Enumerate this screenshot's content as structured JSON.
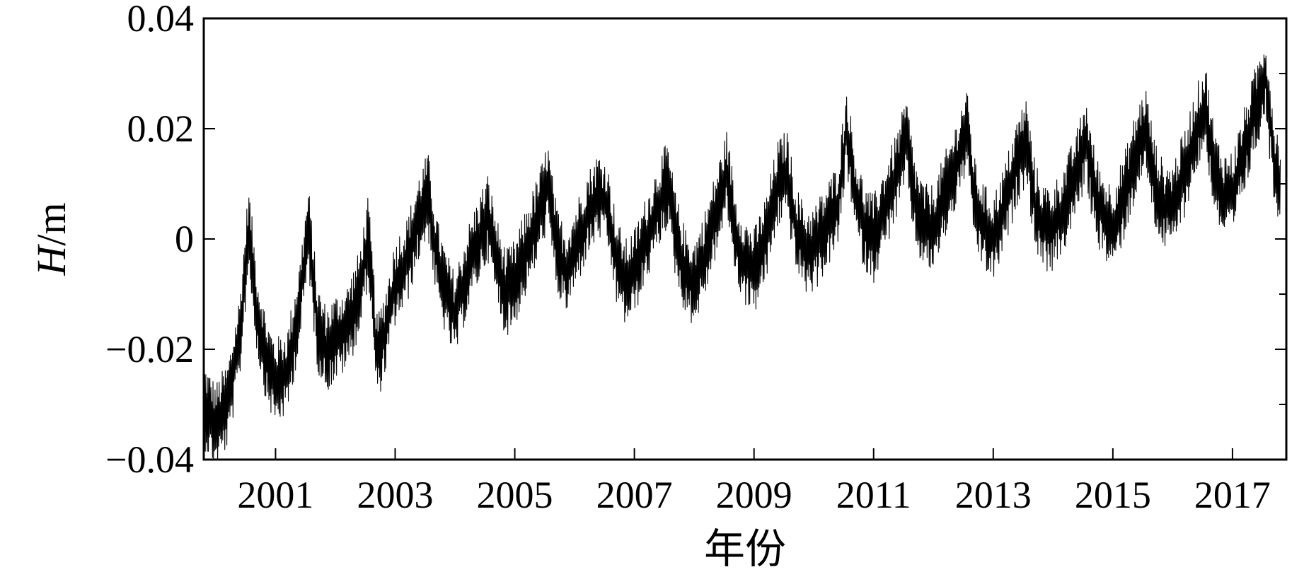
{
  "chart_data": {
    "type": "line",
    "xlabel": "年份",
    "ylabel": {
      "symbol": "H",
      "unit": "/m"
    },
    "xlim": [
      1999.8,
      2017.9
    ],
    "ylim": [
      -0.04,
      0.04
    ],
    "xticks": [
      2001,
      2003,
      2005,
      2007,
      2009,
      2011,
      2013,
      2015,
      2017
    ],
    "xtick_labels": [
      "2001",
      "2003",
      "2005",
      "2007",
      "2009",
      "2011",
      "2013",
      "2015",
      "2017"
    ],
    "yticks": [
      -0.04,
      -0.02,
      0,
      0.02,
      0.04
    ],
    "ytick_labels": [
      "−0.04",
      "−0.02",
      "0",
      "0.02",
      "0.04"
    ],
    "grid": false,
    "series": [
      {
        "color": "#000000",
        "x": [
          1999.8,
          2000.0,
          2000.2,
          2000.4,
          2000.55,
          2000.7,
          2000.85,
          2001.0,
          2001.2,
          2001.4,
          2001.55,
          2001.7,
          2001.85,
          2002.0,
          2002.2,
          2002.4,
          2002.55,
          2002.7,
          2002.85,
          2003.0,
          2003.2,
          2003.4,
          2003.55,
          2003.7,
          2003.85,
          2004.0,
          2004.2,
          2004.4,
          2004.55,
          2004.7,
          2004.85,
          2005.0,
          2005.2,
          2005.4,
          2005.55,
          2005.7,
          2005.85,
          2006.0,
          2006.2,
          2006.4,
          2006.55,
          2006.7,
          2006.85,
          2007.0,
          2007.2,
          2007.4,
          2007.55,
          2007.7,
          2007.85,
          2008.0,
          2008.2,
          2008.4,
          2008.55,
          2008.7,
          2008.85,
          2009.0,
          2009.2,
          2009.4,
          2009.55,
          2009.7,
          2009.85,
          2010.0,
          2010.2,
          2010.4,
          2010.55,
          2010.7,
          2010.85,
          2011.0,
          2011.2,
          2011.4,
          2011.55,
          2011.7,
          2011.85,
          2012.0,
          2012.2,
          2012.4,
          2012.55,
          2012.7,
          2012.85,
          2013.0,
          2013.2,
          2013.4,
          2013.55,
          2013.7,
          2013.85,
          2014.0,
          2014.2,
          2014.4,
          2014.55,
          2014.7,
          2014.85,
          2015.0,
          2015.2,
          2015.4,
          2015.55,
          2015.7,
          2015.85,
          2016.0,
          2016.2,
          2016.4,
          2016.55,
          2016.7,
          2016.85,
          2017.0,
          2017.2,
          2017.4,
          2017.55,
          2017.7,
          2017.8
        ],
        "y": [
          -0.03,
          -0.034,
          -0.03,
          -0.018,
          0.002,
          -0.014,
          -0.022,
          -0.026,
          -0.024,
          -0.012,
          0.002,
          -0.016,
          -0.02,
          -0.018,
          -0.016,
          -0.01,
          0.0,
          -0.022,
          -0.016,
          -0.008,
          -0.004,
          0.004,
          0.008,
          -0.004,
          -0.01,
          -0.014,
          -0.006,
          0.0,
          0.004,
          -0.004,
          -0.01,
          -0.008,
          -0.002,
          0.004,
          0.01,
          -0.002,
          -0.006,
          -0.002,
          0.004,
          0.008,
          0.006,
          -0.004,
          -0.008,
          -0.006,
          0.0,
          0.006,
          0.01,
          0.0,
          -0.006,
          -0.008,
          -0.002,
          0.006,
          0.012,
          0.0,
          -0.004,
          -0.006,
          0.0,
          0.01,
          0.012,
          0.002,
          -0.002,
          -0.002,
          0.002,
          0.006,
          0.02,
          0.008,
          0.002,
          0.0,
          0.006,
          0.012,
          0.018,
          0.006,
          0.002,
          0.002,
          0.008,
          0.014,
          0.02,
          0.006,
          0.002,
          0.0,
          0.006,
          0.014,
          0.018,
          0.006,
          0.002,
          0.002,
          0.006,
          0.012,
          0.018,
          0.008,
          0.004,
          0.002,
          0.008,
          0.016,
          0.02,
          0.01,
          0.006,
          0.006,
          0.012,
          0.02,
          0.024,
          0.012,
          0.008,
          0.008,
          0.016,
          0.024,
          0.03,
          0.014,
          0.01
        ],
        "noise_amplitude": 0.008
      }
    ]
  }
}
